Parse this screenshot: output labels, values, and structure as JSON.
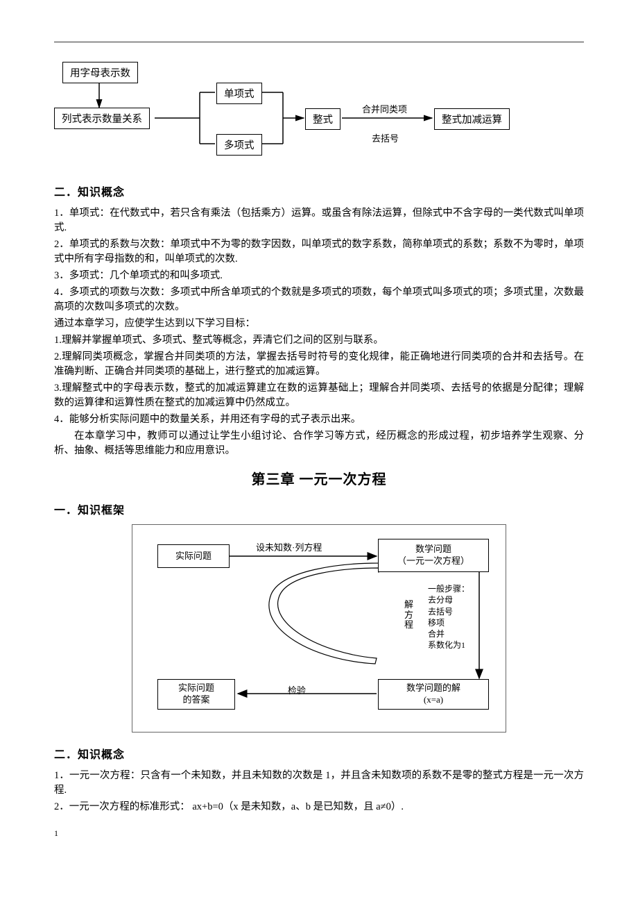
{
  "diagram1": {
    "boxes": {
      "b1": "用字母表示数",
      "b2": "列式表示数量关系",
      "b3": "单项式",
      "b4": "多项式",
      "b5": "整式",
      "b6": "整式加减运算"
    },
    "labels": {
      "l1": "合并同类项",
      "l2": "去括号"
    },
    "style": {
      "border_color": "#000000",
      "font_size": 14.5,
      "font_family": "KaiTi"
    }
  },
  "section2_head": "二．知识概念",
  "concepts2": {
    "p1": "1．单项式：在代数式中，若只含有乘法（包括乘方）运算。或虽含有除法运算，但除式中不含字母的一类代数式叫单项式.",
    "p2": "2．单项式的系数与次数：单项式中不为零的数字因数，叫单项式的数字系数，简称单项式的系数；系数不为零时，单项式中所有字母指数的和，叫单项式的次数.",
    "p3": "3．多项式：几个单项式的和叫多项式.",
    "p4": "4．多项式的项数与次数：多项式中所含单项式的个数就是多项式的项数，每个单项式叫多项式的项；多项式里，次数最高项的次数叫多项式的次数。",
    "p5": "通过本章学习，应使学生达到以下学习目标：",
    "p6": "1.理解并掌握单项式、多项式、整式等概念，弄清它们之间的区别与联系。",
    "p7": "2.理解同类项概念，掌握合并同类项的方法，掌握去括号时符号的变化规律，能正确地进行同类项的合并和去括号。在准确判断、正确合并同类项的基础上，进行整式的加减运算。",
    "p8": "3.理解整式中的字母表示数，整式的加减运算建立在数的运算基础上；理解合并同类项、去括号的依据是分配律；理解数的运算律和运算性质在整式的加减运算中仍然成立。",
    "p9": " 4．能够分析实际问题中的数量关系，并用还有字母的式子表示出来。",
    "p10": "在本章学习中，教师可以通过让学生小组讨论、合作学习等方式，经历概念的形成过程，初步培养学生观察、分析、抽象、概括等思维能力和应用意识。"
  },
  "chapter3_title": "第三章   一元一次方程",
  "section1b_head": "一．知识框架",
  "diagram2": {
    "boxes": {
      "b1": "实际问题",
      "b2_l1": "数学问题",
      "b2_l2": "（一元一次方程）",
      "b3_l1": "实际问题",
      "b3_l2": "的答案",
      "b4_l1": "数学问题的解",
      "b4_l2": "(x=a)"
    },
    "labels": {
      "top": "设未知数·列方程",
      "right_title": "解方程",
      "steps_title": "一般步骤：",
      "s1": "去分母",
      "s2": "去括号",
      "s3": "移项",
      "s4": "合并",
      "s5": "系数化为1",
      "bottom": "检验"
    },
    "style": {
      "border_color": "#000000",
      "outer_border": "#666666",
      "font_size": 13
    }
  },
  "section2b_head": "二．知识概念",
  "concepts2b": {
    "p1": "1．一元一次方程：只含有一个未知数，并且未知数的次数是 1，并且含未知数项的系数不是零的整式方程是一元一次方程.",
    "p2": "2．一元一次方程的标准形式： ax+b=0（x 是未知数，a、b 是已知数，且 a≠0）."
  },
  "page_number": "1",
  "colors": {
    "text": "#000000",
    "background": "#ffffff",
    "rule": "#333333"
  }
}
